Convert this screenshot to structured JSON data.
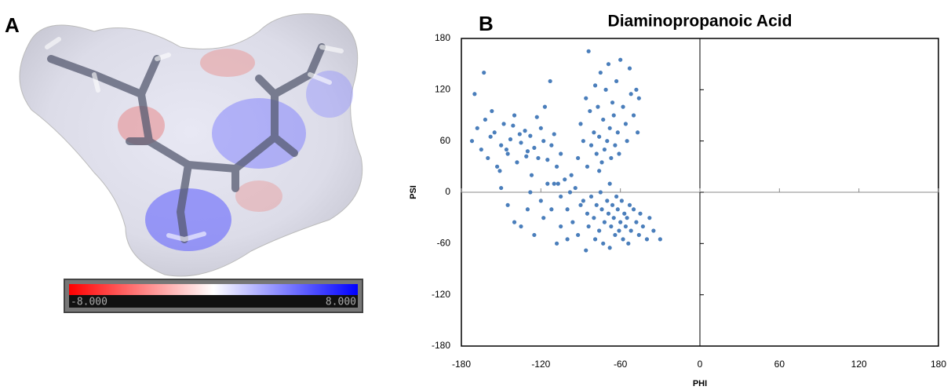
{
  "panel_labels": [
    "A",
    "B"
  ],
  "colorbar": {
    "min_label": "-8.000",
    "max_label": "8.000"
  },
  "chart_data": {
    "type": "scatter",
    "title": "Diaminopropanoic Acid",
    "x_label": "PHI",
    "y_label": "PSI",
    "color": "#4a7ebb",
    "xlim": [
      -180,
      180
    ],
    "ylim": [
      -180,
      180
    ],
    "xticks": [
      -180,
      -120,
      -60,
      0,
      60,
      120,
      180
    ],
    "yticks": [
      -180,
      -120,
      -60,
      0,
      60,
      120,
      180
    ],
    "grid": false,
    "x": [
      -172,
      -168,
      -165,
      -162,
      -160,
      -158,
      -155,
      -153,
      -150,
      -148,
      -145,
      -143,
      -140,
      -138,
      -135,
      -132,
      -130,
      -128,
      -125,
      -122,
      -120,
      -118,
      -115,
      -112,
      -110,
      -108,
      -105,
      -170,
      -163,
      -157,
      -151,
      -146,
      -141,
      -136,
      -131,
      -127,
      -123,
      -117,
      -113,
      -107,
      -92,
      -90,
      -88,
      -86,
      -85,
      -83,
      -82,
      -80,
      -79,
      -78,
      -77,
      -76,
      -75,
      -74,
      -73,
      -72,
      -71,
      -70,
      -69,
      -68,
      -67,
      -66,
      -65,
      -64,
      -63,
      -62,
      -61,
      -60,
      -58,
      -56,
      -55,
      -53,
      -52,
      -50,
      -48,
      -47,
      -46,
      -84,
      -76,
      -68,
      -110,
      -105,
      -102,
      -100,
      -98,
      -96,
      -94,
      -92,
      -90,
      -88,
      -86,
      -85,
      -84,
      -82,
      -80,
      -79,
      -78,
      -76,
      -75,
      -74,
      -73,
      -72,
      -70,
      -69,
      -68,
      -67,
      -66,
      -65,
      -64,
      -63,
      -62,
      -61,
      -60,
      -59,
      -58,
      -57,
      -56,
      -55,
      -54,
      -53,
      -52,
      -50,
      -48,
      -46,
      -45,
      -43,
      -40,
      -38,
      -35,
      -30,
      -140,
      -135,
      -130,
      -128,
      -125,
      -120,
      -118,
      -115,
      -112,
      -108,
      -105,
      -100,
      -97,
      -150,
      -145
    ],
    "values": [
      60,
      75,
      50,
      85,
      40,
      65,
      70,
      30,
      55,
      80,
      45,
      62,
      90,
      35,
      58,
      72,
      48,
      66,
      52,
      40,
      75,
      60,
      38,
      55,
      68,
      30,
      45,
      115,
      140,
      95,
      25,
      50,
      78,
      68,
      42,
      20,
      88,
      100,
      130,
      10,
      40,
      80,
      60,
      110,
      30,
      95,
      55,
      70,
      125,
      45,
      100,
      65,
      140,
      35,
      85,
      50,
      120,
      60,
      150,
      75,
      40,
      105,
      90,
      55,
      130,
      70,
      45,
      155,
      100,
      80,
      60,
      145,
      115,
      90,
      120,
      70,
      110,
      165,
      25,
      10,
      10,
      -5,
      15,
      -20,
      0,
      -35,
      5,
      -50,
      -15,
      -10,
      -68,
      -25,
      -40,
      -5,
      -30,
      -55,
      -15,
      -45,
      0,
      -20,
      -60,
      -35,
      -10,
      -25,
      -65,
      -40,
      -15,
      -30,
      -50,
      -5,
      -20,
      -45,
      -35,
      -10,
      -55,
      -25,
      -40,
      -30,
      -60,
      -15,
      -45,
      -20,
      -35,
      -50,
      -25,
      -40,
      -55,
      -30,
      -45,
      -55,
      -35,
      -40,
      -20,
      0,
      -50,
      -10,
      -30,
      10,
      -20,
      -60,
      -40,
      -55,
      20,
      5,
      -15
    ]
  }
}
